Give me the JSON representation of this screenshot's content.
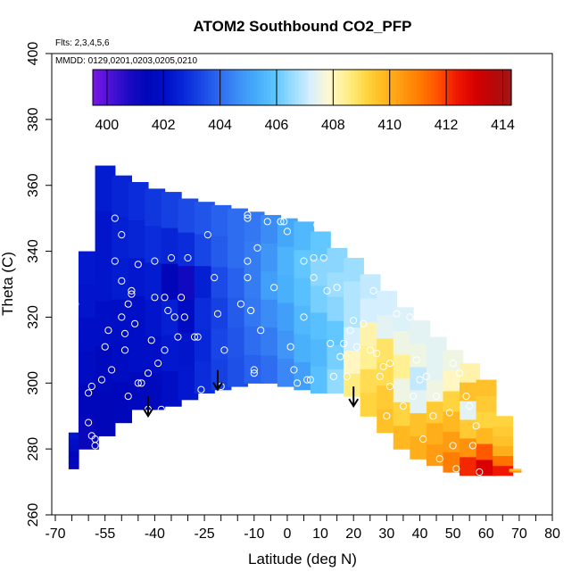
{
  "chart_data": {
    "type": "heatmap",
    "title": "ATOM2 Southbound CO2_PFP",
    "flights_note": "Flts: 2,3,4,5,6",
    "dates_note": "MMDD: 0129,0201,0203,0205,0210",
    "xlabel": "Latitude (deg N)",
    "ylabel": "Theta (C)",
    "xlim": [
      -70,
      80
    ],
    "ylim": [
      260,
      400
    ],
    "x_ticks": [
      -70,
      -65,
      -60,
      -55,
      -50,
      -45,
      -40,
      -35,
      -30,
      -25,
      -20,
      -15,
      -10,
      -5,
      0,
      5,
      10,
      15,
      20,
      25,
      30,
      35,
      40,
      45,
      50,
      55,
      60,
      65,
      70,
      75,
      80
    ],
    "x_tick_labels": [
      "-70",
      "-55",
      "-40",
      "-25",
      "-10",
      "0",
      "10",
      "20",
      "30",
      "40",
      "50",
      "60",
      "70",
      "80"
    ],
    "x_tick_label_values": [
      -70,
      -55,
      -40,
      -25,
      -10,
      0,
      10,
      20,
      30,
      40,
      50,
      60,
      70,
      80
    ],
    "y_ticks": [
      260,
      280,
      300,
      320,
      340,
      360,
      380,
      400
    ],
    "y_tick_labels": [
      "260",
      "280",
      "300",
      "320",
      "340",
      "360",
      "380",
      "400"
    ],
    "colorbar": {
      "range": [
        399.5,
        414.3
      ],
      "tick_values": [
        400,
        402,
        404,
        406,
        408,
        410,
        412,
        414
      ],
      "tick_labels": [
        "400",
        "402",
        "404",
        "406",
        "408",
        "410",
        "412",
        "414"
      ],
      "colors": [
        "#7b16e8",
        "#4a12d6",
        "#1a0ac4",
        "#0006b8",
        "#0010c8",
        "#0828d8",
        "#1a48e6",
        "#2e6cf0",
        "#3d8ff6",
        "#45acfb",
        "#5dc5ff",
        "#9bddff",
        "#d8f0ff",
        "#fff8d0",
        "#ffee88",
        "#ffd640",
        "#ffb820",
        "#ff9a10",
        "#ff7a00",
        "#ff5000",
        "#f01800",
        "#d80000",
        "#b80808",
        "#a01818"
      ]
    },
    "field": {
      "lat": [
        -66,
        -60,
        -55,
        -50,
        -45,
        -40,
        -35,
        -30,
        -25,
        -20,
        -15,
        -10,
        -5,
        0,
        5,
        10,
        15,
        20,
        25,
        30,
        35,
        40,
        45,
        50,
        55,
        60,
        65,
        70
      ],
      "theta_bottom": [
        274,
        280,
        284,
        288,
        292,
        292,
        293,
        295,
        297,
        298,
        299,
        300,
        300,
        299,
        298,
        297,
        297,
        296,
        290,
        285,
        280,
        277,
        275,
        273,
        272,
        272,
        272,
        273
      ],
      "theta_top": [
        285,
        340,
        366,
        363,
        361,
        359,
        358,
        356,
        355,
        354,
        353,
        352,
        351,
        350,
        349,
        346,
        341,
        338,
        333,
        328,
        323,
        319,
        314,
        310,
        306,
        301,
        290,
        274
      ],
      "values": [
        [
          401.2,
          401.3,
          401.5,
          401.8,
          402.0,
          402.2
        ],
        [
          401.2,
          401.5,
          401.8,
          402.0,
          402.2,
          402.3
        ],
        [
          401.4,
          401.6,
          402.0,
          402.2,
          402.2,
          402.4
        ],
        [
          401.5,
          401.8,
          402.0,
          402.4,
          402.5,
          402.6
        ],
        [
          401.6,
          402.0,
          402.0,
          402.3,
          402.6,
          402.8
        ],
        [
          401.6,
          402.0,
          402.2,
          402.4,
          402.8,
          403.0
        ],
        [
          402.0,
          402.3,
          402.5,
          401.4,
          402.6,
          403.2
        ],
        [
          402.3,
          402.2,
          401.8,
          401.0,
          402.8,
          403.4
        ],
        [
          402.8,
          402.7,
          402.8,
          402.5,
          403.3,
          403.6
        ],
        [
          403.2,
          403.3,
          403.2,
          403.4,
          403.7,
          403.8
        ],
        [
          403.5,
          403.6,
          403.7,
          403.8,
          404.0,
          404.0
        ],
        [
          403.8,
          404.0,
          404.2,
          404.3,
          404.3,
          404.2
        ],
        [
          404.0,
          404.3,
          404.6,
          405.0,
          404.8,
          404.6
        ],
        [
          404.5,
          404.8,
          405.0,
          405.4,
          405.5,
          405.2
        ],
        [
          405.0,
          405.4,
          405.6,
          405.8,
          406.0,
          405.6
        ],
        [
          405.8,
          405.6,
          405.8,
          406.2,
          406.4,
          406.0
        ],
        [
          406.5,
          406.2,
          406.0,
          406.4,
          406.6,
          406.4
        ],
        [
          408.6,
          408.0,
          407.2,
          406.8,
          406.8,
          406.6
        ],
        [
          409.2,
          409.0,
          408.4,
          408.2,
          407.2,
          407.0
        ],
        [
          409.6,
          409.4,
          409.0,
          408.8,
          407.4,
          407.2
        ],
        [
          409.8,
          409.2,
          407.6,
          408.4,
          407.6,
          407.3
        ],
        [
          410.0,
          409.6,
          407.4,
          407.0,
          407.6,
          407.4
        ],
        [
          410.4,
          410.0,
          409.4,
          407.6,
          407.4,
          407.4
        ],
        [
          411.0,
          410.4,
          409.8,
          409.2,
          408.0,
          407.6
        ],
        [
          412.2,
          410.6,
          409.4,
          407.4,
          409.6,
          408.2
        ],
        [
          413.0,
          411.6,
          409.8,
          409.2,
          409.4,
          409.6
        ],
        [
          412.4,
          411.2,
          410.0,
          409.6,
          409.4,
          409.2
        ],
        [
          411.0,
          410.6,
          410.2,
          409.8,
          409.6,
          409.4
        ]
      ]
    },
    "sample_points": [
      [
        -67,
        289
      ],
      [
        -65,
        294
      ],
      [
        -64,
        324
      ],
      [
        -60,
        297
      ],
      [
        -59,
        299
      ],
      [
        -60,
        288
      ],
      [
        -59,
        284
      ],
      [
        -58,
        281
      ],
      [
        -58,
        283
      ],
      [
        -56,
        301
      ],
      [
        -55,
        311
      ],
      [
        -54,
        316
      ],
      [
        -53,
        304
      ],
      [
        -52,
        337
      ],
      [
        -52,
        350
      ],
      [
        -50,
        345
      ],
      [
        -50,
        331
      ],
      [
        -50,
        320
      ],
      [
        -49,
        315
      ],
      [
        -49,
        310
      ],
      [
        -48,
        296
      ],
      [
        -48,
        324
      ],
      [
        -47,
        328
      ],
      [
        -47,
        327
      ],
      [
        -46,
        318
      ],
      [
        -45,
        336
      ],
      [
        -45,
        300
      ],
      [
        -44,
        300
      ],
      [
        -42,
        292
      ],
      [
        -42,
        303
      ],
      [
        -41,
        313
      ],
      [
        -40,
        337
      ],
      [
        -40,
        326
      ],
      [
        -39,
        306
      ],
      [
        -38,
        292
      ],
      [
        -37,
        310
      ],
      [
        -37,
        326
      ],
      [
        -36,
        322
      ],
      [
        -35,
        338
      ],
      [
        -34,
        320
      ],
      [
        -33,
        314
      ],
      [
        -32,
        326
      ],
      [
        -31,
        320
      ],
      [
        -30,
        338
      ],
      [
        -28,
        314
      ],
      [
        -27,
        314
      ],
      [
        -26,
        298
      ],
      [
        -24,
        345
      ],
      [
        -22,
        332
      ],
      [
        -21,
        321
      ],
      [
        -20,
        299
      ],
      [
        -19,
        310
      ],
      [
        -14,
        324
      ],
      [
        -12,
        351
      ],
      [
        -12,
        350
      ],
      [
        -12,
        337
      ],
      [
        -12,
        332
      ],
      [
        -11,
        322
      ],
      [
        -11,
        322
      ],
      [
        -10,
        304
      ],
      [
        -10,
        303
      ],
      [
        -9,
        341
      ],
      [
        -8,
        316
      ],
      [
        -6,
        349
      ],
      [
        -4,
        329
      ],
      [
        -2,
        349
      ],
      [
        -1,
        349
      ],
      [
        0,
        346
      ],
      [
        1,
        311
      ],
      [
        2,
        304
      ],
      [
        3,
        300
      ],
      [
        5,
        337
      ],
      [
        5,
        320
      ],
      [
        6,
        301
      ],
      [
        7,
        301
      ],
      [
        8,
        338
      ],
      [
        8,
        332
      ],
      [
        9,
        348
      ],
      [
        10,
        348
      ],
      [
        11,
        338
      ],
      [
        12,
        328
      ],
      [
        13,
        312
      ],
      [
        14,
        302
      ],
      [
        15,
        329
      ],
      [
        16,
        308
      ],
      [
        17,
        312
      ],
      [
        18,
        302
      ],
      [
        19,
        316
      ],
      [
        20,
        319
      ],
      [
        21,
        311
      ],
      [
        23,
        318
      ],
      [
        25,
        310
      ],
      [
        26,
        328
      ],
      [
        27,
        309
      ],
      [
        28,
        302
      ],
      [
        29,
        305
      ],
      [
        30,
        290
      ],
      [
        31,
        306
      ],
      [
        31,
        299
      ],
      [
        33,
        321
      ],
      [
        35,
        293
      ],
      [
        37,
        320
      ],
      [
        38,
        296
      ],
      [
        39,
        307
      ],
      [
        40,
        301
      ],
      [
        41,
        283
      ],
      [
        42,
        302
      ],
      [
        44,
        290
      ],
      [
        45,
        296
      ],
      [
        46,
        277
      ],
      [
        49,
        291
      ],
      [
        50,
        306
      ],
      [
        50,
        281
      ],
      [
        51,
        274
      ],
      [
        52,
        303
      ],
      [
        54,
        296
      ],
      [
        55,
        293
      ],
      [
        56,
        281
      ],
      [
        57,
        287
      ],
      [
        58,
        273
      ]
    ],
    "arrows": [
      {
        "lat": -42,
        "theta": 290
      },
      {
        "lat": -21,
        "theta": 298
      },
      {
        "lat": 20,
        "theta": 293
      }
    ],
    "grid": false,
    "legend_position": "top (inside plot)"
  }
}
